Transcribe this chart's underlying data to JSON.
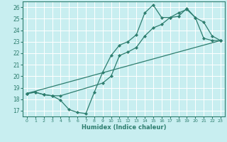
{
  "xlabel": "Humidex (Indice chaleur)",
  "bg_color": "#c8eef0",
  "grid_color": "#ffffff",
  "line_color": "#2d7d6e",
  "xlim": [
    -0.5,
    23.5
  ],
  "ylim": [
    16.5,
    26.5
  ],
  "xticks": [
    0,
    1,
    2,
    3,
    4,
    5,
    6,
    7,
    8,
    9,
    10,
    11,
    12,
    13,
    14,
    15,
    16,
    17,
    18,
    19,
    20,
    21,
    22,
    23
  ],
  "yticks": [
    17,
    18,
    19,
    20,
    21,
    22,
    23,
    24,
    25,
    26
  ],
  "line1_x": [
    0,
    1,
    2,
    3,
    4,
    5,
    6,
    7,
    8,
    9,
    10,
    11,
    12,
    13,
    14,
    15,
    16,
    17,
    18,
    19,
    20,
    21,
    22,
    23
  ],
  "line1_y": [
    18.5,
    18.6,
    18.4,
    18.3,
    17.9,
    17.1,
    16.85,
    16.75,
    18.6,
    20.35,
    21.8,
    22.7,
    23.0,
    23.6,
    25.5,
    26.2,
    25.1,
    25.1,
    25.5,
    25.8,
    25.1,
    24.7,
    23.5,
    23.1
  ],
  "line2_x": [
    0,
    1,
    2,
    3,
    4,
    9,
    10,
    11,
    12,
    13,
    14,
    15,
    16,
    17,
    18,
    19,
    20,
    21,
    22,
    23
  ],
  "line2_y": [
    18.5,
    18.6,
    18.4,
    18.3,
    18.3,
    19.4,
    20.0,
    21.8,
    22.1,
    22.5,
    23.5,
    24.2,
    24.5,
    25.1,
    25.2,
    25.9,
    25.1,
    23.3,
    23.1,
    23.1
  ],
  "line3_x": [
    0,
    23
  ],
  "line3_y": [
    18.5,
    23.1
  ]
}
